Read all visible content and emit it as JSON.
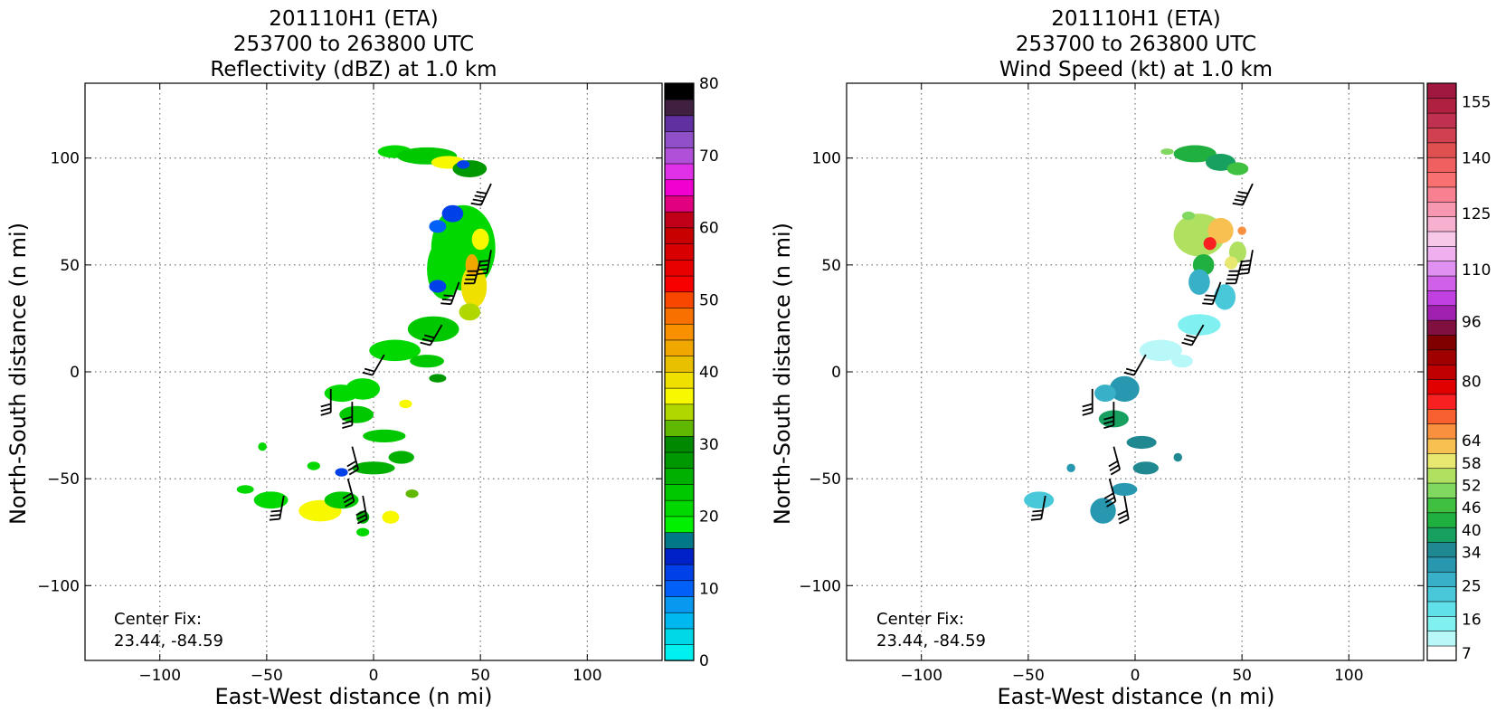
{
  "chart_data": [
    {
      "type": "heatmap",
      "title_lines": [
        "201110H1 (ETA)",
        "253700 to 263800 UTC",
        "Reflectivity (dBZ) at 1.0 km"
      ],
      "xlabel": "East-West distance (n mi)",
      "ylabel": "North-South distance (n mi)",
      "xlim": [
        -135,
        135
      ],
      "ylim": [
        -135,
        135
      ],
      "x_ticks": [
        -100,
        -50,
        0,
        50,
        100
      ],
      "y_ticks": [
        -100,
        -50,
        0,
        50,
        100
      ],
      "x_tick_labels": [
        "−100",
        "−50",
        "0",
        "50",
        "100"
      ],
      "y_tick_labels": [
        "−100",
        "−50",
        "0",
        "50",
        "100"
      ],
      "grid": true,
      "annotation_lines": [
        "Center Fix:",
        "23.44, -84.59"
      ],
      "colorbar": {
        "min": 0,
        "max": 80,
        "tick_values": [
          0,
          10,
          20,
          30,
          40,
          50,
          60,
          70,
          80
        ],
        "tick_labels": [
          "0",
          "10",
          "20",
          "30",
          "40",
          "50",
          "60",
          "70",
          "80"
        ],
        "colors": [
          "#00f0f0",
          "#00d8e8",
          "#00b8f0",
          "#0898f0",
          "#0060f8",
          "#0040e8",
          "#0020c8",
          "#007888",
          "#00f000",
          "#00d800",
          "#00c800",
          "#00b000",
          "#009800",
          "#008800",
          "#60b800",
          "#b0d800",
          "#f8f800",
          "#f0e000",
          "#e8c000",
          "#f0a800",
          "#f89000",
          "#f87000",
          "#f84800",
          "#f80000",
          "#e80000",
          "#d80000",
          "#c80000",
          "#c00018",
          "#e00080",
          "#f000d0",
          "#e030e8",
          "#b050d8",
          "#9050c8",
          "#6030a0",
          "#402040",
          "#000000"
        ]
      },
      "blobs": [
        {
          "x": 10,
          "y": 103,
          "rx": 8,
          "ry": 3,
          "v": 22
        },
        {
          "x": 25,
          "y": 101,
          "rx": 14,
          "ry": 4,
          "v": 24
        },
        {
          "x": 35,
          "y": 98,
          "rx": 8,
          "ry": 3,
          "v": 36
        },
        {
          "x": 45,
          "y": 95,
          "rx": 8,
          "ry": 4,
          "v": 28
        },
        {
          "x": 42,
          "y": 97,
          "rx": 3,
          "ry": 2,
          "v": 12
        },
        {
          "x": 42,
          "y": 58,
          "rx": 15,
          "ry": 20,
          "v": 22
        },
        {
          "x": 33,
          "y": 48,
          "rx": 8,
          "ry": 14,
          "v": 20
        },
        {
          "x": 47,
          "y": 40,
          "rx": 6,
          "ry": 10,
          "v": 38
        },
        {
          "x": 50,
          "y": 62,
          "rx": 4,
          "ry": 5,
          "v": 37
        },
        {
          "x": 46,
          "y": 50,
          "rx": 3,
          "ry": 5,
          "v": 44
        },
        {
          "x": 37,
          "y": 74,
          "rx": 5,
          "ry": 4,
          "v": 12
        },
        {
          "x": 30,
          "y": 68,
          "rx": 4,
          "ry": 3,
          "v": 11
        },
        {
          "x": 30,
          "y": 40,
          "rx": 4,
          "ry": 3,
          "v": 12
        },
        {
          "x": 45,
          "y": 28,
          "rx": 5,
          "ry": 4,
          "v": 34
        },
        {
          "x": 28,
          "y": 20,
          "rx": 12,
          "ry": 6,
          "v": 24
        },
        {
          "x": 10,
          "y": 10,
          "rx": 12,
          "ry": 5,
          "v": 22
        },
        {
          "x": 25,
          "y": 5,
          "rx": 8,
          "ry": 3,
          "v": 24
        },
        {
          "x": 30,
          "y": -3,
          "rx": 4,
          "ry": 2,
          "v": 28
        },
        {
          "x": -5,
          "y": -8,
          "rx": 8,
          "ry": 5,
          "v": 22
        },
        {
          "x": -15,
          "y": -10,
          "rx": 8,
          "ry": 4,
          "v": 22
        },
        {
          "x": -8,
          "y": -20,
          "rx": 8,
          "ry": 4,
          "v": 24
        },
        {
          "x": 15,
          "y": -15,
          "rx": 3,
          "ry": 2,
          "v": 36
        },
        {
          "x": 5,
          "y": -30,
          "rx": 10,
          "ry": 3,
          "v": 24
        },
        {
          "x": 13,
          "y": -40,
          "rx": 6,
          "ry": 3,
          "v": 26
        },
        {
          "x": 0,
          "y": -45,
          "rx": 10,
          "ry": 3,
          "v": 26
        },
        {
          "x": -15,
          "y": -47,
          "rx": 3,
          "ry": 2,
          "v": 12
        },
        {
          "x": -28,
          "y": -44,
          "rx": 3,
          "ry": 2,
          "v": 22
        },
        {
          "x": -48,
          "y": -60,
          "rx": 8,
          "ry": 4,
          "v": 22
        },
        {
          "x": -60,
          "y": -55,
          "rx": 4,
          "ry": 2,
          "v": 22
        },
        {
          "x": -25,
          "y": -65,
          "rx": 10,
          "ry": 5,
          "v": 37
        },
        {
          "x": -15,
          "y": -60,
          "rx": 8,
          "ry": 4,
          "v": 24
        },
        {
          "x": -5,
          "y": -68,
          "rx": 3,
          "ry": 3,
          "v": 26
        },
        {
          "x": 8,
          "y": -68,
          "rx": 4,
          "ry": 3,
          "v": 37
        },
        {
          "x": 18,
          "y": -57,
          "rx": 3,
          "ry": 2,
          "v": 33
        },
        {
          "x": -5,
          "y": -75,
          "rx": 3,
          "ry": 2,
          "v": 22
        },
        {
          "x": -52,
          "y": -35,
          "rx": 2,
          "ry": 2,
          "v": 22
        }
      ]
    },
    {
      "type": "heatmap",
      "title_lines": [
        "201110H1 (ETA)",
        "253700 to 263800 UTC",
        "Wind Speed (kt) at 1.0 km"
      ],
      "xlabel": "East-West distance (n mi)",
      "ylabel": "North-South distance (n mi)",
      "xlim": [
        -135,
        135
      ],
      "ylim": [
        -135,
        135
      ],
      "x_ticks": [
        -100,
        -50,
        0,
        50,
        100
      ],
      "y_ticks": [
        -100,
        -50,
        0,
        50,
        100
      ],
      "x_tick_labels": [
        "−100",
        "−50",
        "0",
        "50",
        "100"
      ],
      "y_tick_labels": [
        "−100",
        "−50",
        "0",
        "50",
        "100"
      ],
      "grid": true,
      "annotation_lines": [
        "Center Fix:",
        "23.44, -84.59"
      ],
      "colorbar": {
        "min": 5,
        "max": 160,
        "tick_values": [
          7,
          16,
          25,
          34,
          40,
          46,
          52,
          58,
          64,
          80,
          96,
          110,
          125,
          140,
          155
        ],
        "tick_labels": [
          "7",
          "16",
          "25",
          "34",
          "40",
          "46",
          "52",
          "58",
          "64",
          "80",
          "96",
          "110",
          "125",
          "140",
          "155"
        ],
        "colors": [
          "#ffffff",
          "#b8f8f8",
          "#80f0f0",
          "#60e0e8",
          "#48c8d8",
          "#38b0c8",
          "#2898b0",
          "#208890",
          "#18a060",
          "#20b040",
          "#40c040",
          "#80d860",
          "#b0e060",
          "#e8e870",
          "#f8c050",
          "#f89040",
          "#f86030",
          "#f82020",
          "#e00000",
          "#c00000",
          "#a00000",
          "#800000",
          "#801040",
          "#a020b0",
          "#c040e0",
          "#d060e8",
          "#e090f0",
          "#f0b0f0",
          "#f8c8e8",
          "#f8b0d0",
          "#f898b0",
          "#f88090",
          "#f87070",
          "#f06060",
          "#e05050",
          "#d04050",
          "#c03050",
          "#b02040",
          "#a01840"
        ]
      },
      "blobs": [
        {
          "x": 28,
          "y": 102,
          "rx": 10,
          "ry": 4,
          "v": 42
        },
        {
          "x": 40,
          "y": 98,
          "rx": 7,
          "ry": 4,
          "v": 38
        },
        {
          "x": 48,
          "y": 95,
          "rx": 5,
          "ry": 3,
          "v": 46
        },
        {
          "x": 15,
          "y": 103,
          "rx": 3,
          "ry": 1.5,
          "v": 50
        },
        {
          "x": 30,
          "y": 64,
          "rx": 12,
          "ry": 10,
          "v": 54
        },
        {
          "x": 40,
          "y": 66,
          "rx": 6,
          "ry": 6,
          "v": 62
        },
        {
          "x": 48,
          "y": 56,
          "rx": 4,
          "ry": 5,
          "v": 56
        },
        {
          "x": 45,
          "y": 51,
          "rx": 3,
          "ry": 3,
          "v": 60
        },
        {
          "x": 25,
          "y": 73,
          "rx": 3,
          "ry": 2,
          "v": 50
        },
        {
          "x": 50,
          "y": 66,
          "rx": 2,
          "ry": 2,
          "v": 66
        },
        {
          "x": 32,
          "y": 50,
          "rx": 5,
          "ry": 5,
          "v": 44
        },
        {
          "x": 30,
          "y": 42,
          "rx": 5,
          "ry": 6,
          "v": 28
        },
        {
          "x": 42,
          "y": 35,
          "rx": 5,
          "ry": 6,
          "v": 24
        },
        {
          "x": 30,
          "y": 22,
          "rx": 10,
          "ry": 5,
          "v": 14
        },
        {
          "x": 12,
          "y": 10,
          "rx": 10,
          "ry": 5,
          "v": 12
        },
        {
          "x": 22,
          "y": 5,
          "rx": 5,
          "ry": 3,
          "v": 12
        },
        {
          "x": -5,
          "y": -8,
          "rx": 7,
          "ry": 6,
          "v": 30
        },
        {
          "x": -14,
          "y": -10,
          "rx": 5,
          "ry": 4,
          "v": 28
        },
        {
          "x": -10,
          "y": -22,
          "rx": 7,
          "ry": 4,
          "v": 40
        },
        {
          "x": 3,
          "y": -33,
          "rx": 7,
          "ry": 3,
          "v": 34
        },
        {
          "x": 5,
          "y": -45,
          "rx": 6,
          "ry": 3,
          "v": 34
        },
        {
          "x": -5,
          "y": -55,
          "rx": 6,
          "ry": 3,
          "v": 30
        },
        {
          "x": -15,
          "y": -65,
          "rx": 6,
          "ry": 6,
          "v": 32
        },
        {
          "x": -45,
          "y": -60,
          "rx": 7,
          "ry": 4,
          "v": 22
        },
        {
          "x": -30,
          "y": -45,
          "rx": 2,
          "ry": 2,
          "v": 30
        },
        {
          "x": 20,
          "y": -40,
          "rx": 2,
          "ry": 2,
          "v": 34
        },
        {
          "x": 35,
          "y": 60,
          "rx": 3,
          "ry": 3,
          "v": 74
        }
      ]
    }
  ],
  "barbs": [
    {
      "x": 55,
      "y": 88,
      "a": 205,
      "n": 4
    },
    {
      "x": 55,
      "y": 57,
      "a": 190,
      "n": 4
    },
    {
      "x": 50,
      "y": 52,
      "a": 195,
      "n": 4
    },
    {
      "x": 40,
      "y": 42,
      "a": 200,
      "n": 3
    },
    {
      "x": 32,
      "y": 22,
      "a": 210,
      "n": 3
    },
    {
      "x": 5,
      "y": 8,
      "a": 210,
      "n": 2
    },
    {
      "x": -20,
      "y": -8,
      "a": 180,
      "n": 3
    },
    {
      "x": -10,
      "y": -14,
      "a": 180,
      "n": 3
    },
    {
      "x": -10,
      "y": -35,
      "a": 165,
      "n": 3
    },
    {
      "x": -12,
      "y": -50,
      "a": 165,
      "n": 3
    },
    {
      "x": -5,
      "y": -58,
      "a": 170,
      "n": 3
    },
    {
      "x": -42,
      "y": -58,
      "a": 190,
      "n": 3
    }
  ]
}
